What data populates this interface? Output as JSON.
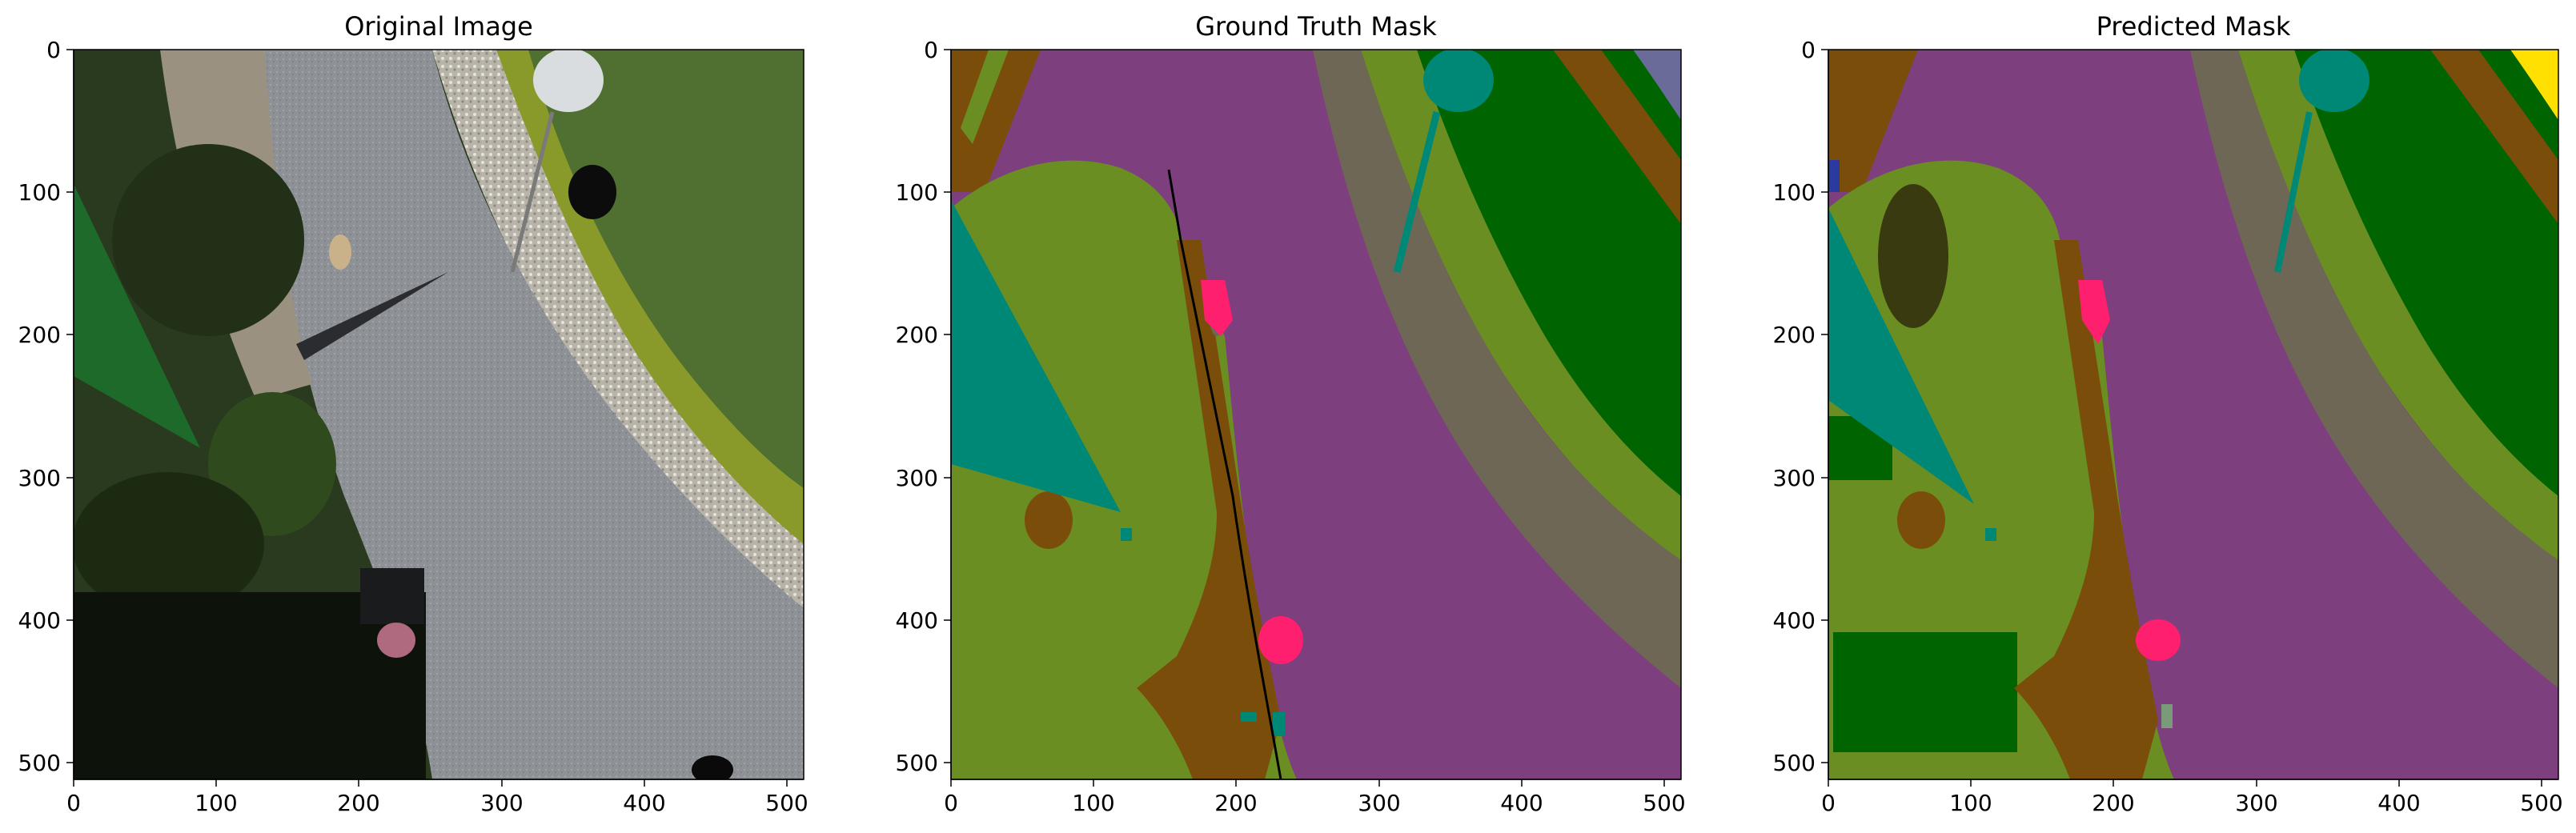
{
  "figure": {
    "panels": [
      {
        "title": "Original Image",
        "x_ticks": [
          "0",
          "100",
          "200",
          "300",
          "400",
          "500"
        ],
        "y_ticks": [
          "0",
          "100",
          "200",
          "300",
          "400",
          "500"
        ]
      },
      {
        "title": "Ground Truth Mask",
        "x_ticks": [
          "0",
          "100",
          "200",
          "300",
          "400",
          "500"
        ],
        "y_ticks": [
          "0",
          "100",
          "200",
          "300",
          "400",
          "500"
        ]
      },
      {
        "title": "Predicted Mask",
        "x_ticks": [
          "0",
          "100",
          "200",
          "300",
          "400",
          "500"
        ],
        "y_ticks": [
          "0",
          "100",
          "200",
          "300",
          "400",
          "500"
        ]
      }
    ],
    "axis_range": [
      0,
      512
    ],
    "class_colors": {
      "paved_area": "#7e3f7e",
      "grass": "#6b8e23",
      "vegetation": "#006400",
      "gravel": "#6f6755",
      "dirt": "#7a4e0a",
      "pool_or_object": "#008877",
      "person": "#ff1f6f",
      "roof": "#6b6b9a",
      "bicycle": "#ffe000",
      "tree": "#3a3a10",
      "obstacle": "#000000"
    }
  }
}
